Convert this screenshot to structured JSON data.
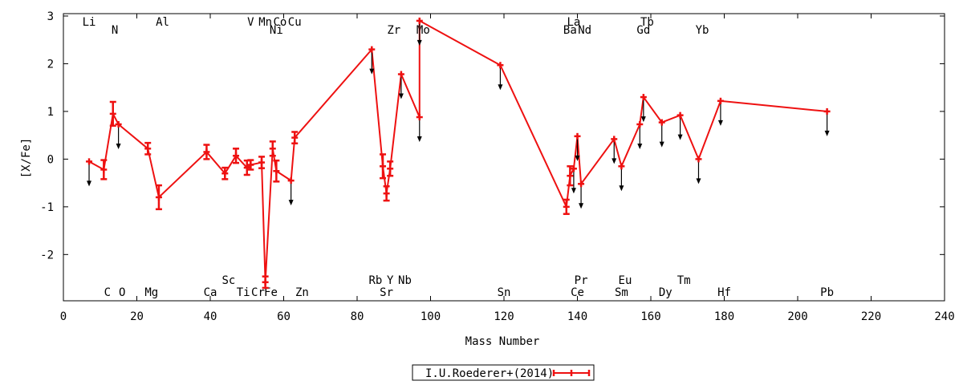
{
  "chart_data": {
    "type": "scatter",
    "xlabel": "Mass Number",
    "ylabel": "[X/Fe]",
    "xlim": [
      0,
      240
    ],
    "ylim": [
      -2.97,
      3.05
    ],
    "x_ticks": [
      0,
      20,
      40,
      60,
      80,
      100,
      120,
      140,
      160,
      180,
      200,
      220,
      240
    ],
    "y_ticks": [
      -2,
      -1,
      0,
      1,
      2,
      3
    ],
    "grid": false,
    "legend_position": "bottom-center",
    "series": [
      {
        "name": "I.U.Roederer+(2014)",
        "color": "#ee1111",
        "points": [
          {
            "x": 7,
            "y": -0.05,
            "err": 0,
            "upper_limit": true
          },
          {
            "x": 11,
            "y": -0.22,
            "err": 0.2,
            "upper_limit": false
          },
          {
            "x": 13.5,
            "y": 0.95,
            "err": 0.25,
            "upper_limit": false
          },
          {
            "x": 15,
            "y": 0.73,
            "err": 0,
            "upper_limit": true
          },
          {
            "x": 23,
            "y": 0.22,
            "err": 0.12,
            "upper_limit": false
          },
          {
            "x": 26,
            "y": -0.8,
            "err": 0.25,
            "upper_limit": false
          },
          {
            "x": 39,
            "y": 0.15,
            "err": 0.15,
            "upper_limit": false
          },
          {
            "x": 44,
            "y": -0.3,
            "err": 0.12,
            "upper_limit": false
          },
          {
            "x": 47,
            "y": 0.07,
            "err": 0.15,
            "upper_limit": false
          },
          {
            "x": 50,
            "y": -0.18,
            "err": 0.15,
            "upper_limit": false
          },
          {
            "x": 51,
            "y": -0.12,
            "err": 0.1,
            "upper_limit": false
          },
          {
            "x": 54,
            "y": -0.07,
            "err": 0.12,
            "upper_limit": false
          },
          {
            "x": 55,
            "y": -2.58,
            "err": 0.12,
            "upper_limit": false
          },
          {
            "x": 57,
            "y": 0.22,
            "err": 0.15,
            "upper_limit": false
          },
          {
            "x": 58,
            "y": -0.25,
            "err": 0.22,
            "upper_limit": false
          },
          {
            "x": 62,
            "y": -0.45,
            "err": 0,
            "upper_limit": true
          },
          {
            "x": 63,
            "y": 0.45,
            "err": 0.12,
            "upper_limit": false
          },
          {
            "x": 84,
            "y": 2.3,
            "err": 0,
            "upper_limit": true
          },
          {
            "x": 87,
            "y": -0.15,
            "err": 0.25,
            "upper_limit": false
          },
          {
            "x": 88,
            "y": -0.72,
            "err": 0.15,
            "upper_limit": false
          },
          {
            "x": 89,
            "y": -0.2,
            "err": 0.15,
            "upper_limit": false
          },
          {
            "x": 92,
            "y": 1.78,
            "err": 0,
            "upper_limit": true
          },
          {
            "x": 97,
            "y": 0.88,
            "err": 0,
            "upper_limit": true
          },
          {
            "x": 97,
            "y": 2.9,
            "err": 0,
            "upper_limit": true
          },
          {
            "x": 119,
            "y": 1.97,
            "err": 0,
            "upper_limit": true
          },
          {
            "x": 137,
            "y": -1.0,
            "err": 0.15,
            "upper_limit": false
          },
          {
            "x": 138,
            "y": -0.35,
            "err": 0.2,
            "upper_limit": false
          },
          {
            "x": 139,
            "y": -0.2,
            "err": 0,
            "upper_limit": true
          },
          {
            "x": 140,
            "y": 0.48,
            "err": 0,
            "upper_limit": true
          },
          {
            "x": 141,
            "y": -0.52,
            "err": 0,
            "upper_limit": true
          },
          {
            "x": 150,
            "y": 0.42,
            "err": 0,
            "upper_limit": true
          },
          {
            "x": 152,
            "y": -0.15,
            "err": 0,
            "upper_limit": true
          },
          {
            "x": 157,
            "y": 0.73,
            "err": 0,
            "upper_limit": true
          },
          {
            "x": 158,
            "y": 1.3,
            "err": 0,
            "upper_limit": true
          },
          {
            "x": 163,
            "y": 0.77,
            "err": 0,
            "upper_limit": true
          },
          {
            "x": 168,
            "y": 0.92,
            "err": 0,
            "upper_limit": true
          },
          {
            "x": 173,
            "y": 0.0,
            "err": 0,
            "upper_limit": true
          },
          {
            "x": 179,
            "y": 1.22,
            "err": 0,
            "upper_limit": true
          },
          {
            "x": 208,
            "y": 1.0,
            "err": 0,
            "upper_limit": true
          }
        ]
      }
    ],
    "element_labels": [
      {
        "text": "Li",
        "x": 7,
        "row": "top1"
      },
      {
        "text": "N",
        "x": 14,
        "row": "top2"
      },
      {
        "text": "Al",
        "x": 27,
        "row": "top1"
      },
      {
        "text": "V",
        "x": 51,
        "row": "top1"
      },
      {
        "text": "Mn",
        "x": 55,
        "row": "top1"
      },
      {
        "text": "Co",
        "x": 59,
        "row": "top1"
      },
      {
        "text": "Ni",
        "x": 58,
        "row": "top2"
      },
      {
        "text": "Cu",
        "x": 63,
        "row": "top1"
      },
      {
        "text": "Zr",
        "x": 90,
        "row": "top2"
      },
      {
        "text": "Mo",
        "x": 98,
        "row": "top2"
      },
      {
        "text": "La",
        "x": 139,
        "row": "top1"
      },
      {
        "text": "Ba",
        "x": 138,
        "row": "top2"
      },
      {
        "text": "Nd",
        "x": 142,
        "row": "top2"
      },
      {
        "text": "Tb",
        "x": 159,
        "row": "top1"
      },
      {
        "text": "Gd",
        "x": 158,
        "row": "top2"
      },
      {
        "text": "Yb",
        "x": 174,
        "row": "top2"
      },
      {
        "text": "Sc",
        "x": 45,
        "row": "bot1"
      },
      {
        "text": "Rb",
        "x": 85,
        "row": "bot1"
      },
      {
        "text": "Y",
        "x": 89,
        "row": "bot1"
      },
      {
        "text": "Nb",
        "x": 93,
        "row": "bot1"
      },
      {
        "text": "Pr",
        "x": 141,
        "row": "bot1"
      },
      {
        "text": "Eu",
        "x": 153,
        "row": "bot1"
      },
      {
        "text": "Tm",
        "x": 169,
        "row": "bot1"
      },
      {
        "text": "C",
        "x": 12,
        "row": "bot2"
      },
      {
        "text": "O",
        "x": 16,
        "row": "bot2"
      },
      {
        "text": "Mg",
        "x": 24,
        "row": "bot2"
      },
      {
        "text": "Ca",
        "x": 40,
        "row": "bot2"
      },
      {
        "text": "Ti",
        "x": 49,
        "row": "bot2"
      },
      {
        "text": "Cr",
        "x": 53,
        "row": "bot2"
      },
      {
        "text": "Fe",
        "x": 56.5,
        "row": "bot2"
      },
      {
        "text": "Zn",
        "x": 65,
        "row": "bot2"
      },
      {
        "text": "Sr",
        "x": 88,
        "row": "bot2"
      },
      {
        "text": "Sn",
        "x": 120,
        "row": "bot2"
      },
      {
        "text": "Ce",
        "x": 140,
        "row": "bot2"
      },
      {
        "text": "Sm",
        "x": 152,
        "row": "bot2"
      },
      {
        "text": "Dy",
        "x": 164,
        "row": "bot2"
      },
      {
        "text": "Hf",
        "x": 180,
        "row": "bot2"
      },
      {
        "text": "Pb",
        "x": 208,
        "row": "bot2"
      }
    ]
  }
}
